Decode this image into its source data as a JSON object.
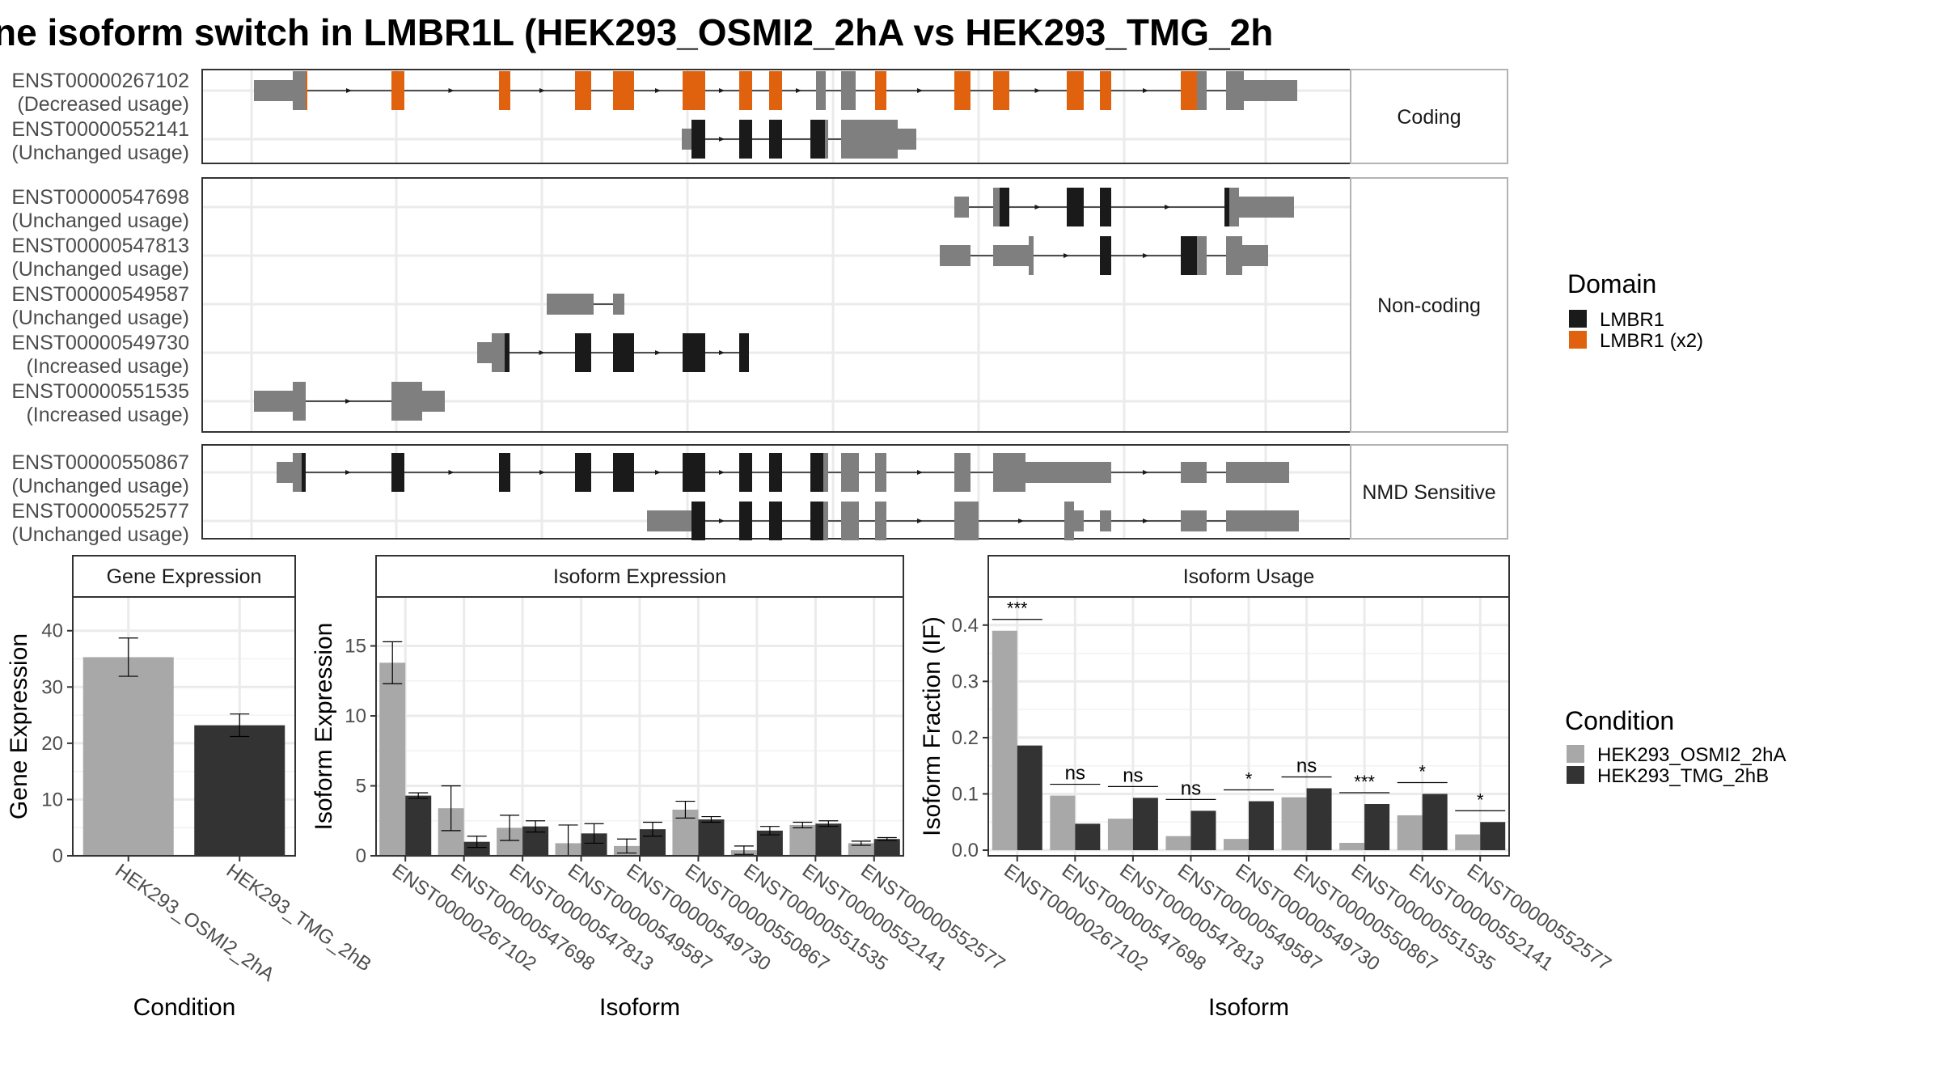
{
  "title": "ne isoform switch in LMBR1L (HEK293_OSMI2_2hA vs HEK293_TMG_2h",
  "domain_legend": {
    "title": "Domain",
    "items": [
      {
        "label": "LMBR1",
        "color": "#1a1a1a"
      },
      {
        "label": "LMBR1 (x2)",
        "color": "#e0620f"
      }
    ]
  },
  "condition_legend": {
    "title": "Condition",
    "items": [
      {
        "label": "HEK293_OSMI2_2hA",
        "color": "#a8a8a8"
      },
      {
        "label": "HEK293_TMG_2hB",
        "color": "#333333"
      }
    ]
  },
  "structure_panels": [
    {
      "label": "Coding",
      "transcripts": [
        {
          "id": "ENST00000267102",
          "usage": "(Decreased usage)"
        },
        {
          "id": "ENST00000552141",
          "usage": "(Unchanged usage)"
        }
      ]
    },
    {
      "label": "Non-coding",
      "transcripts": [
        {
          "id": "ENST00000547698",
          "usage": "(Unchanged usage)"
        },
        {
          "id": "ENST00000547813",
          "usage": "(Unchanged usage)"
        },
        {
          "id": "ENST00000549587",
          "usage": "(Unchanged usage)"
        },
        {
          "id": "ENST00000549730",
          "usage": "(Increased usage)"
        },
        {
          "id": "ENST00000551535",
          "usage": "(Increased usage)"
        }
      ]
    },
    {
      "label": "NMD Sensitive",
      "transcripts": [
        {
          "id": "ENST00000550867",
          "usage": "(Unchanged usage)"
        },
        {
          "id": "ENST00000552577",
          "usage": "(Unchanged usage)"
        }
      ]
    }
  ],
  "chart_data": [
    {
      "type": "bar",
      "title": "Gene Expression",
      "xlabel": "Condition",
      "ylabel": "Gene Expression",
      "ylim": [
        0,
        46
      ],
      "yticks": [
        0,
        10,
        20,
        30,
        40
      ],
      "categories": [
        "HEK293_OSMI2_2hA",
        "HEK293_TMG_2hB"
      ],
      "series": [
        {
          "name": "HEK293_OSMI2_2hA",
          "values": [
            35.3,
            null
          ],
          "err": [
            3.4,
            null
          ]
        },
        {
          "name": "HEK293_TMG_2hB",
          "values": [
            null,
            23.2
          ],
          "err": [
            null,
            2.0
          ]
        }
      ]
    },
    {
      "type": "bar",
      "title": "Isoform Expression",
      "xlabel": "Isoform",
      "ylabel": "Isoform Expression",
      "ylim": [
        0,
        18.5
      ],
      "yticks": [
        0,
        5,
        10,
        15
      ],
      "categories": [
        "ENST00000267102",
        "ENST00000547698",
        "ENST00000547813",
        "ENST00000549587",
        "ENST00000549730",
        "ENST00000550867",
        "ENST00000551535",
        "ENST00000552141",
        "ENST00000552577"
      ],
      "series": [
        {
          "name": "HEK293_OSMI2_2hA",
          "values": [
            13.8,
            3.4,
            2.0,
            0.9,
            0.7,
            3.3,
            0.4,
            2.2,
            0.9
          ],
          "err": [
            1.5,
            1.6,
            0.9,
            1.3,
            0.5,
            0.6,
            0.3,
            0.2,
            0.15
          ]
        },
        {
          "name": "HEK293_TMG_2hB",
          "values": [
            4.3,
            1.0,
            2.1,
            1.6,
            1.9,
            2.6,
            1.8,
            2.3,
            1.2
          ],
          "err": [
            0.2,
            0.4,
            0.4,
            0.7,
            0.5,
            0.2,
            0.3,
            0.2,
            0.1
          ]
        }
      ]
    },
    {
      "type": "bar",
      "title": "Isoform Usage",
      "xlabel": "Isoform",
      "ylabel": "Isoform Fraction (IF)",
      "ylim": [
        -0.01,
        0.45
      ],
      "yticks": [
        0.0,
        0.1,
        0.2,
        0.3,
        0.4
      ],
      "ytick_labels": [
        "0.0",
        "0.1",
        "0.2",
        "0.3",
        "0.4"
      ],
      "categories": [
        "ENST00000267102",
        "ENST00000547698",
        "ENST00000547813",
        "ENST00000549587",
        "ENST00000549730",
        "ENST00000550867",
        "ENST00000551535",
        "ENST00000552141",
        "ENST00000552577"
      ],
      "series": [
        {
          "name": "HEK293_OSMI2_2hA",
          "values": [
            0.39,
            0.097,
            0.056,
            0.025,
            0.02,
            0.094,
            0.013,
            0.062,
            0.028
          ]
        },
        {
          "name": "HEK293_TMG_2hB",
          "values": [
            0.186,
            0.047,
            0.093,
            0.07,
            0.087,
            0.11,
            0.082,
            0.1,
            0.05
          ]
        }
      ],
      "significance": [
        "***",
        "ns",
        "ns",
        "ns",
        "*",
        "ns",
        "***",
        "*",
        "*"
      ]
    }
  ]
}
